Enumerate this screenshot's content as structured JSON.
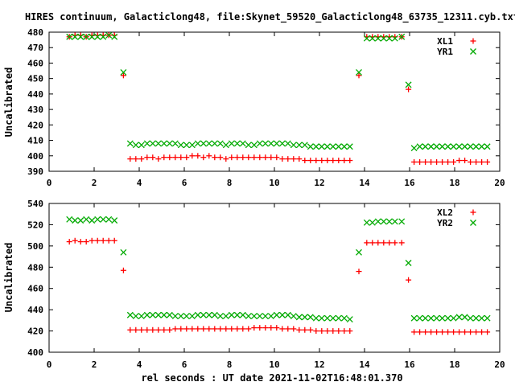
{
  "chart_data": [
    {
      "type": "scatter",
      "title": "HIRES continuum, Galacticlong48, file:Skynet_59520_Galacticlong48_63735_12311.cyb.txt",
      "xlabel": "",
      "ylabel": "Uncalibrated",
      "xlim": [
        0,
        20
      ],
      "ylim": [
        390,
        480
      ],
      "xticks": [
        0,
        2,
        4,
        6,
        8,
        10,
        12,
        14,
        16,
        18,
        20
      ],
      "yticks": [
        390,
        400,
        410,
        420,
        430,
        440,
        450,
        460,
        470,
        480
      ],
      "legend_position": "top-right",
      "series": [
        {
          "name": "XL1",
          "color": "#ff0000",
          "marker": "plus",
          "x": [
            0.9,
            1.15,
            1.4,
            1.65,
            1.9,
            2.15,
            2.4,
            2.65,
            2.9,
            3.3,
            3.6,
            3.85,
            4.1,
            4.35,
            4.6,
            4.85,
            5.1,
            5.35,
            5.6,
            5.85,
            6.1,
            6.35,
            6.6,
            6.85,
            7.1,
            7.35,
            7.6,
            7.85,
            8.1,
            8.35,
            8.6,
            8.85,
            9.1,
            9.35,
            9.6,
            9.85,
            10.1,
            10.35,
            10.6,
            10.85,
            11.1,
            11.35,
            11.6,
            11.85,
            12.1,
            12.35,
            12.6,
            12.85,
            13.1,
            13.35,
            13.75,
            14.1,
            14.35,
            14.6,
            14.85,
            15.1,
            15.35,
            15.65,
            15.95,
            16.2,
            16.45,
            16.7,
            16.95,
            17.2,
            17.45,
            17.7,
            17.95,
            18.2,
            18.45,
            18.7,
            18.95,
            19.2,
            19.45
          ],
          "y": [
            477,
            478,
            478,
            477,
            478,
            478,
            478,
            478,
            478,
            452,
            398,
            398,
            398,
            399,
            399,
            398,
            399,
            399,
            399,
            399,
            399,
            400,
            400,
            399,
            400,
            399,
            399,
            398,
            399,
            399,
            399,
            399,
            399,
            399,
            399,
            399,
            399,
            398,
            398,
            398,
            398,
            397,
            397,
            397,
            397,
            397,
            397,
            397,
            397,
            397,
            452,
            477,
            477,
            477,
            477,
            477,
            477,
            477,
            443,
            396,
            396,
            396,
            396,
            396,
            396,
            396,
            396,
            397,
            397,
            396,
            396,
            396,
            396
          ]
        },
        {
          "name": "YR1",
          "color": "#00aa00",
          "marker": "cross",
          "x": [
            0.9,
            1.15,
            1.4,
            1.65,
            1.9,
            2.15,
            2.4,
            2.65,
            2.9,
            3.3,
            3.6,
            3.85,
            4.1,
            4.35,
            4.6,
            4.85,
            5.1,
            5.35,
            5.6,
            5.85,
            6.1,
            6.35,
            6.6,
            6.85,
            7.1,
            7.35,
            7.6,
            7.85,
            8.1,
            8.35,
            8.6,
            8.85,
            9.1,
            9.35,
            9.6,
            9.85,
            10.1,
            10.35,
            10.6,
            10.85,
            11.1,
            11.35,
            11.6,
            11.85,
            12.1,
            12.35,
            12.6,
            12.85,
            13.1,
            13.35,
            13.75,
            14.1,
            14.35,
            14.6,
            14.85,
            15.1,
            15.35,
            15.65,
            15.95,
            16.2,
            16.45,
            16.7,
            16.95,
            17.2,
            17.45,
            17.7,
            17.95,
            18.2,
            18.45,
            18.7,
            18.95,
            19.2,
            19.45
          ],
          "y": [
            477,
            477,
            477,
            477,
            477,
            477,
            477,
            478,
            477,
            454,
            408,
            407,
            407,
            408,
            408,
            408,
            408,
            408,
            408,
            407,
            407,
            407,
            408,
            408,
            408,
            408,
            408,
            407,
            408,
            408,
            408,
            407,
            407,
            408,
            408,
            408,
            408,
            408,
            408,
            407,
            407,
            407,
            406,
            406,
            406,
            406,
            406,
            406,
            406,
            406,
            454,
            476,
            476,
            476,
            476,
            476,
            476,
            477,
            446,
            405,
            406,
            406,
            406,
            406,
            406,
            406,
            406,
            406,
            406,
            406,
            406,
            406,
            406
          ]
        }
      ]
    },
    {
      "type": "scatter",
      "title": "",
      "xlabel": "rel seconds : UT date 2021-11-02T16:48:01.370",
      "ylabel": "Uncalibrated",
      "xlim": [
        0,
        20
      ],
      "ylim": [
        400,
        540
      ],
      "xticks": [
        0,
        2,
        4,
        6,
        8,
        10,
        12,
        14,
        16,
        18,
        20
      ],
      "yticks": [
        400,
        420,
        440,
        460,
        480,
        500,
        520,
        540
      ],
      "legend_position": "top-right",
      "series": [
        {
          "name": "XL2",
          "color": "#ff0000",
          "marker": "plus",
          "x": [
            0.9,
            1.15,
            1.4,
            1.65,
            1.9,
            2.15,
            2.4,
            2.65,
            2.9,
            3.3,
            3.6,
            3.85,
            4.1,
            4.35,
            4.6,
            4.85,
            5.1,
            5.35,
            5.6,
            5.85,
            6.1,
            6.35,
            6.6,
            6.85,
            7.1,
            7.35,
            7.6,
            7.85,
            8.1,
            8.35,
            8.6,
            8.85,
            9.1,
            9.35,
            9.6,
            9.85,
            10.1,
            10.35,
            10.6,
            10.85,
            11.1,
            11.35,
            11.6,
            11.85,
            12.1,
            12.35,
            12.6,
            12.85,
            13.1,
            13.35,
            13.75,
            14.1,
            14.35,
            14.6,
            14.85,
            15.1,
            15.35,
            15.65,
            15.95,
            16.2,
            16.45,
            16.7,
            16.95,
            17.2,
            17.45,
            17.7,
            17.95,
            18.2,
            18.45,
            18.7,
            18.95,
            19.2,
            19.45
          ],
          "y": [
            504,
            505,
            504,
            504,
            505,
            505,
            505,
            505,
            505,
            477,
            421,
            421,
            421,
            421,
            421,
            421,
            421,
            421,
            422,
            422,
            422,
            422,
            422,
            422,
            422,
            422,
            422,
            422,
            422,
            422,
            422,
            422,
            423,
            423,
            423,
            423,
            423,
            422,
            422,
            422,
            421,
            421,
            421,
            420,
            420,
            420,
            420,
            420,
            420,
            420,
            476,
            503,
            503,
            503,
            503,
            503,
            503,
            503,
            468,
            419,
            419,
            419,
            419,
            419,
            419,
            419,
            419,
            419,
            419,
            419,
            419,
            419,
            419
          ]
        },
        {
          "name": "YR2",
          "color": "#00aa00",
          "marker": "cross",
          "x": [
            0.9,
            1.15,
            1.4,
            1.65,
            1.9,
            2.15,
            2.4,
            2.65,
            2.9,
            3.3,
            3.6,
            3.85,
            4.1,
            4.35,
            4.6,
            4.85,
            5.1,
            5.35,
            5.6,
            5.85,
            6.1,
            6.35,
            6.6,
            6.85,
            7.1,
            7.35,
            7.6,
            7.85,
            8.1,
            8.35,
            8.6,
            8.85,
            9.1,
            9.35,
            9.6,
            9.85,
            10.1,
            10.35,
            10.6,
            10.85,
            11.1,
            11.35,
            11.6,
            11.85,
            12.1,
            12.35,
            12.6,
            12.85,
            13.1,
            13.35,
            13.75,
            14.1,
            14.35,
            14.6,
            14.85,
            15.1,
            15.35,
            15.65,
            15.95,
            16.2,
            16.45,
            16.7,
            16.95,
            17.2,
            17.45,
            17.7,
            17.95,
            18.2,
            18.45,
            18.7,
            18.95,
            19.2,
            19.45
          ],
          "y": [
            525,
            524,
            524,
            525,
            524,
            525,
            525,
            525,
            524,
            494,
            435,
            434,
            434,
            435,
            435,
            435,
            435,
            435,
            434,
            434,
            434,
            434,
            435,
            435,
            435,
            435,
            434,
            434,
            435,
            435,
            435,
            434,
            434,
            434,
            434,
            434,
            435,
            435,
            435,
            434,
            433,
            433,
            433,
            432,
            432,
            432,
            432,
            432,
            432,
            431,
            494,
            522,
            522,
            523,
            523,
            523,
            523,
            523,
            484,
            432,
            432,
            432,
            432,
            432,
            432,
            432,
            432,
            433,
            433,
            432,
            432,
            432,
            432
          ]
        }
      ]
    }
  ]
}
